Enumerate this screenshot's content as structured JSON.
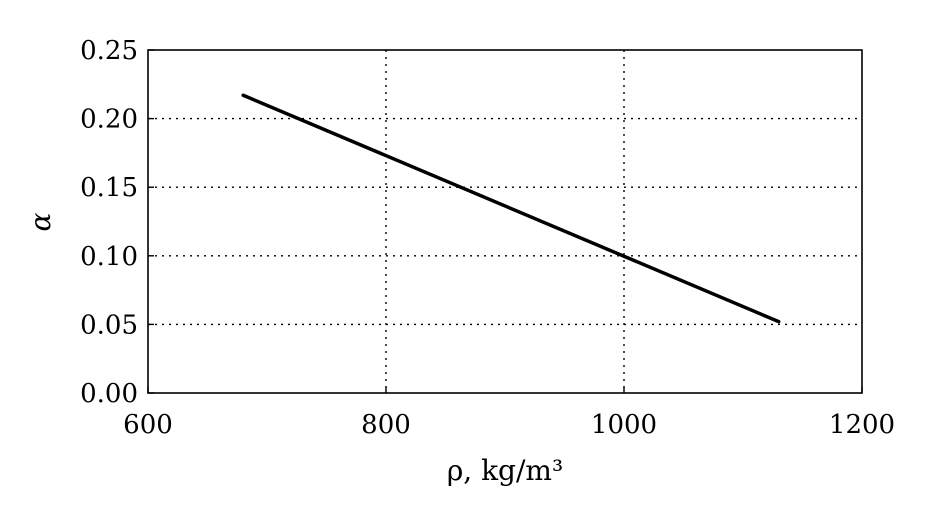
{
  "chart_data": {
    "type": "line",
    "xlabel": "ρ, kg/m³",
    "ylabel": "α",
    "xlim": [
      600,
      1200
    ],
    "ylim": [
      0,
      0.25
    ],
    "xticks": [
      600,
      800,
      1000,
      1200
    ],
    "xtick_labels": [
      "600",
      "800",
      "1000",
      "1200"
    ],
    "yticks": [
      0,
      0.05,
      0.1,
      0.15,
      0.2,
      0.25
    ],
    "ytick_labels": [
      "0.00",
      "0.05",
      "0.10",
      "0.15",
      "0.20",
      "0.25"
    ],
    "grid": true,
    "grid_style": "dotted",
    "series": [
      {
        "x": [
          680,
          1130
        ],
        "y": [
          0.217,
          0.052
        ],
        "color": "#000000"
      }
    ]
  }
}
